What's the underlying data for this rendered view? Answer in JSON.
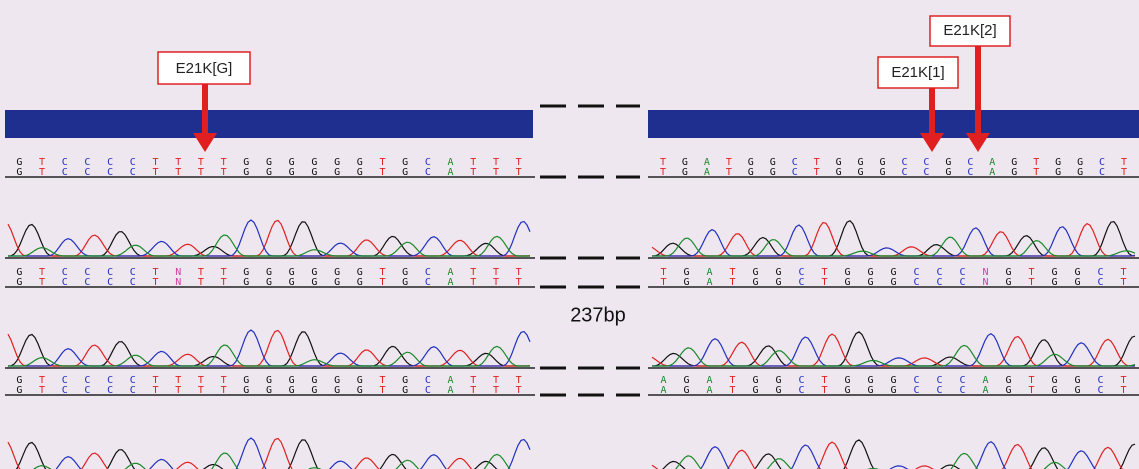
{
  "labels": {
    "g": "E21K[G]",
    "one": "E21K[1]",
    "two": "E21K[2]",
    "gap": "237bp"
  },
  "tracks": [
    {
      "left": [
        "G",
        "T",
        "C",
        "C",
        "C",
        "C",
        "T",
        "T",
        "T",
        "T",
        "G",
        "G",
        "G",
        "G",
        "G",
        "G",
        "T",
        "G",
        "C",
        "A",
        "T",
        "T",
        "T"
      ],
      "right": [
        "T",
        "G",
        "A",
        "T",
        "G",
        "G",
        "C",
        "T",
        "G",
        "G",
        "G",
        "C",
        "C",
        "G",
        "C",
        "A",
        "G",
        "T",
        "G",
        "G",
        "C",
        "T"
      ]
    },
    {
      "left": [
        "G",
        "T",
        "C",
        "C",
        "C",
        "C",
        "T",
        "N",
        "T",
        "T",
        "G",
        "G",
        "G",
        "G",
        "G",
        "G",
        "T",
        "G",
        "C",
        "A",
        "T",
        "T",
        "T"
      ],
      "right": [
        "T",
        "G",
        "A",
        "T",
        "G",
        "G",
        "C",
        "T",
        "G",
        "G",
        "G",
        "C",
        "C",
        "C",
        "N",
        "G",
        "T",
        "G",
        "G",
        "C",
        "T"
      ]
    },
    {
      "left": [
        "G",
        "T",
        "C",
        "C",
        "C",
        "C",
        "T",
        "T",
        "T",
        "T",
        "G",
        "G",
        "G",
        "G",
        "G",
        "G",
        "T",
        "G",
        "C",
        "A",
        "T",
        "T",
        "T"
      ],
      "right": [
        "A",
        "G",
        "A",
        "T",
        "G",
        "G",
        "C",
        "T",
        "G",
        "G",
        "G",
        "C",
        "C",
        "C",
        "A",
        "G",
        "T",
        "G",
        "G",
        "C",
        "T"
      ]
    }
  ]
}
